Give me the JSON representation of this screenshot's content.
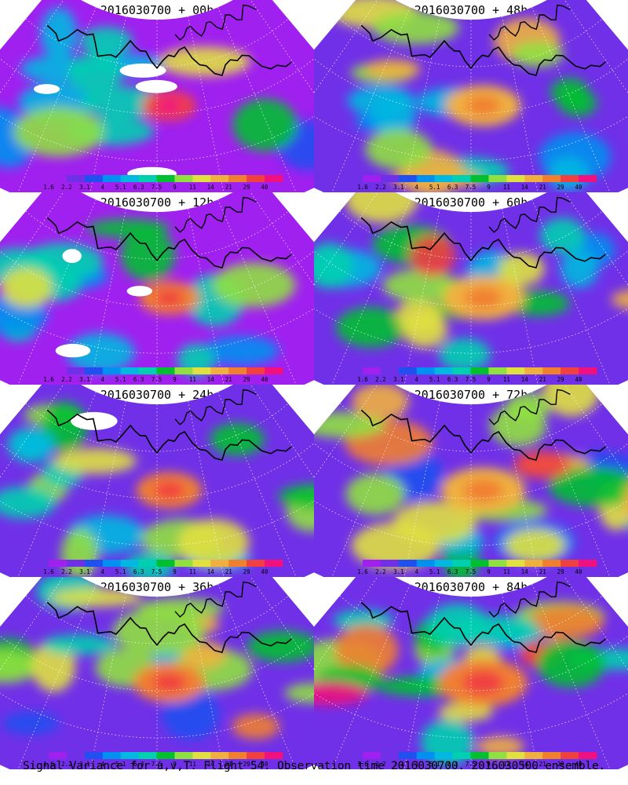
{
  "caption": "Signal Variance for u,v,T. Flight 54. Observation time 2016030700. 2016030500 ensemble.",
  "colorbar": {
    "ticks": [
      "1.6",
      "2.2",
      "3.1",
      "4",
      "5.1",
      "6.3",
      "7.5",
      "9",
      "11",
      "14",
      "21",
      "29",
      "40"
    ],
    "colors": [
      "#a020f0",
      "#7030e8",
      "#2050f0",
      "#0090f0",
      "#00b8e0",
      "#00d0b0",
      "#00c030",
      "#90e040",
      "#e0e040",
      "#f0b040",
      "#f08030",
      "#f04040",
      "#f01080"
    ]
  },
  "chart_data": {
    "type": "heatmap",
    "description_labels": {
      "quantity": "Signal Variance for u,v,T",
      "flight": "Flight 54",
      "observation_time": "2016030700",
      "ensemble": "2016030500"
    },
    "colorbar_levels": [
      1.6,
      2.2,
      3.1,
      4,
      5.1,
      6.3,
      7.5,
      9,
      11,
      14,
      21,
      29,
      40
    ],
    "panels": [
      {
        "title": "2016030700 + 00h",
        "lead_hours": 0,
        "max_level": 40,
        "coverage": 0.35
      },
      {
        "title": "2016030700 + 12h",
        "lead_hours": 12,
        "max_level": 29,
        "coverage": 0.45
      },
      {
        "title": "2016030700 + 24h",
        "lead_hours": 24,
        "max_level": 29,
        "coverage": 0.55
      },
      {
        "title": "2016030700 + 36h",
        "lead_hours": 36,
        "max_level": 29,
        "coverage": 0.65
      },
      {
        "title": "2016030700 + 48h",
        "lead_hours": 48,
        "max_level": 21,
        "coverage": 0.7
      },
      {
        "title": "2016030700 + 60h",
        "lead_hours": 60,
        "max_level": 21,
        "coverage": 0.78
      },
      {
        "title": "2016030700 + 72h",
        "lead_hours": 72,
        "max_level": 21,
        "coverage": 0.85
      },
      {
        "title": "2016030700 + 84h",
        "lead_hours": 84,
        "max_level": 29,
        "coverage": 0.92
      }
    ]
  }
}
